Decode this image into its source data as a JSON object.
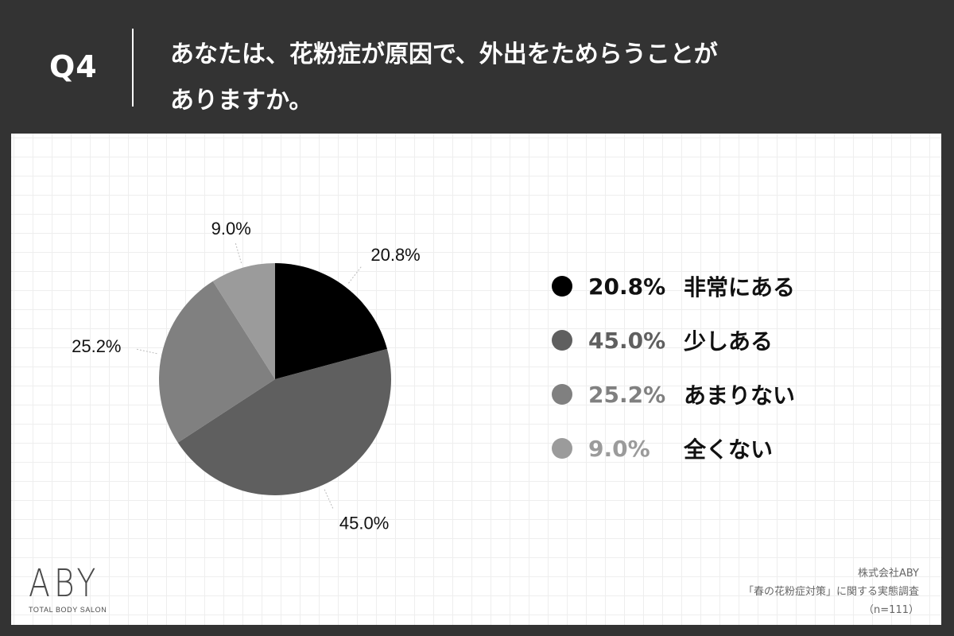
{
  "header": {
    "question_number": "Q4",
    "question_line1": "あなたは、花粉症が原因で、外出をためらうことが",
    "question_line2": "ありますか。"
  },
  "chart_data": {
    "type": "pie",
    "start_angle_deg": 0,
    "direction": "clockwise",
    "slices": [
      {
        "label": "非常にある",
        "value": 20.8,
        "display": "20.8%",
        "color": "#000000",
        "legend_text_color": "#111111"
      },
      {
        "label": "少しある",
        "value": 45.0,
        "display": "45.0%",
        "color": "#5f5f5f",
        "legend_text_color": "#5f5f5f"
      },
      {
        "label": "あまりない",
        "value": 25.2,
        "display": "25.2%",
        "color": "#808080",
        "legend_text_color": "#808080"
      },
      {
        "label": "全くない",
        "value": 9.0,
        "display": "9.0%",
        "color": "#9b9b9b",
        "legend_text_color": "#9b9b9b"
      }
    ],
    "legend_position": "right"
  },
  "footer": {
    "logo_text": "ABY",
    "logo_subtext": "TOTAL BODY SALON",
    "credit_company": "株式会社ABY",
    "credit_survey": "「春の花粉症対策」に関する実態調査",
    "credit_sample": "（n=111）"
  }
}
